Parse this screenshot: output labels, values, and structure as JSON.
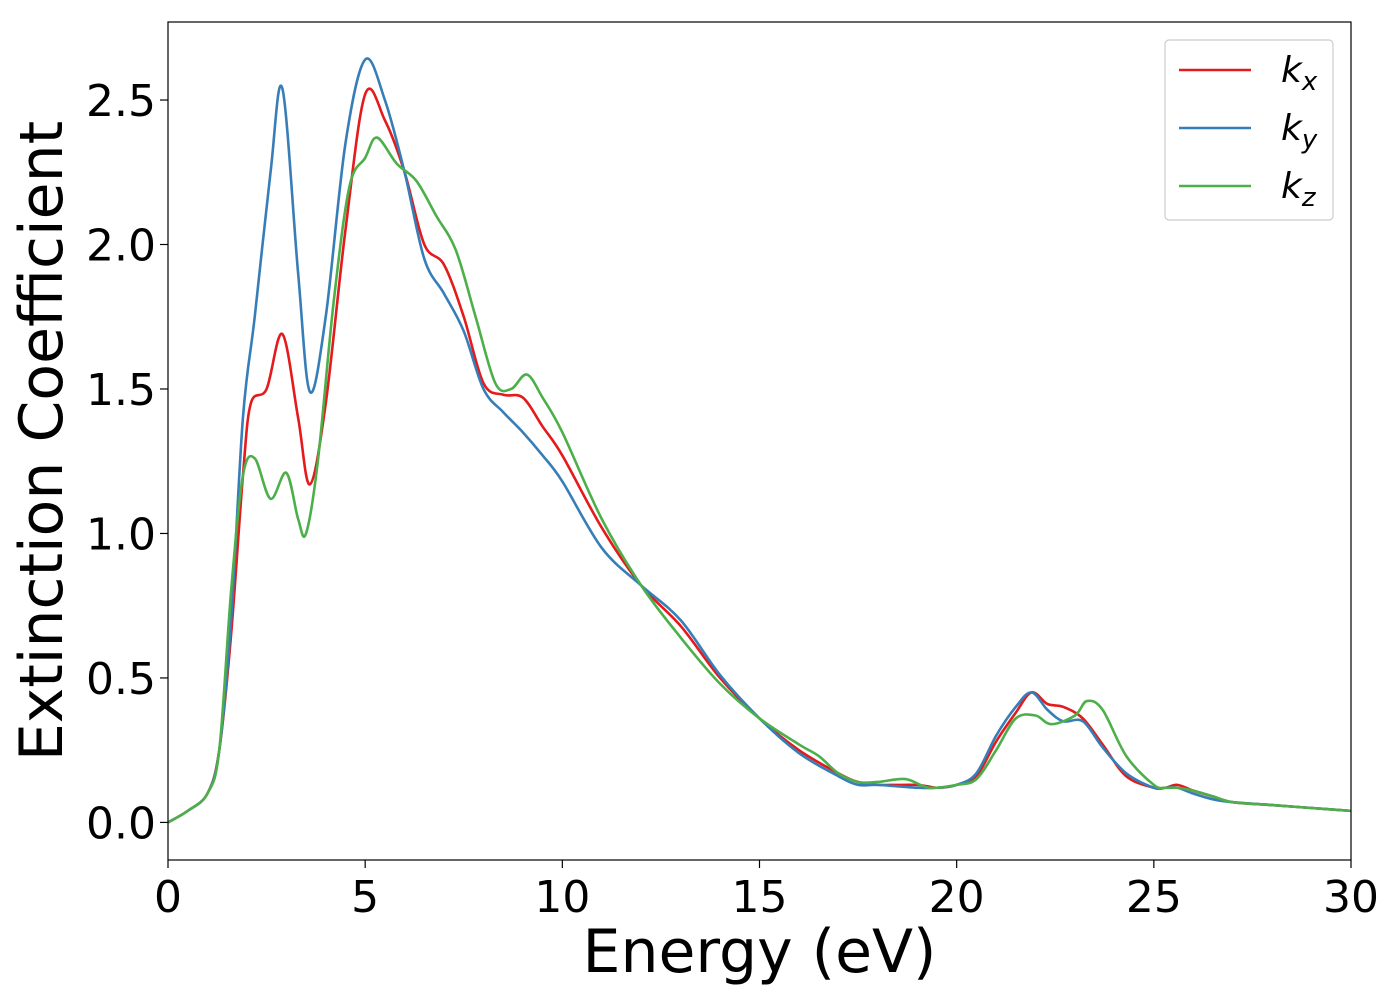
{
  "chart_data": {
    "type": "line",
    "xlabel": "Energy (eV)",
    "ylabel": "Extinction Coefficient",
    "xlim": [
      0,
      30
    ],
    "ylim": [
      -0.13,
      2.77
    ],
    "xticks": [
      0,
      5,
      10,
      15,
      20,
      25,
      30
    ],
    "xtick_labels": [
      "0",
      "5",
      "10",
      "15",
      "20",
      "25",
      "30"
    ],
    "yticks": [
      0.0,
      0.5,
      1.0,
      1.5,
      2.0,
      2.5
    ],
    "ytick_labels": [
      "0.0",
      "0.5",
      "1.0",
      "1.5",
      "2.0",
      "2.5"
    ],
    "grid": false,
    "legend_position": "top-right",
    "series": [
      {
        "name": "kx",
        "legend_base": "k",
        "legend_sub": "x",
        "color": "#e41a1c",
        "x": [
          0,
          0.5,
          1.0,
          1.3,
          1.6,
          1.9,
          2.1,
          2.5,
          2.9,
          3.3,
          3.6,
          4.0,
          4.5,
          5.0,
          5.5,
          6.0,
          6.5,
          7.0,
          7.5,
          8.0,
          8.5,
          9.0,
          9.5,
          10.0,
          11.0,
          12.0,
          13.0,
          14.0,
          15.0,
          16.0,
          17.0,
          17.5,
          18.0,
          19.0,
          19.5,
          20.0,
          20.5,
          21.0,
          21.5,
          21.9,
          22.3,
          22.7,
          23.2,
          23.7,
          24.3,
          25.0,
          25.3,
          25.6,
          26.0,
          26.5,
          27.0,
          28.0,
          29.0,
          30.0
        ],
        "y": [
          0.0,
          0.04,
          0.1,
          0.25,
          0.65,
          1.2,
          1.45,
          1.5,
          1.69,
          1.4,
          1.17,
          1.45,
          2.05,
          2.52,
          2.43,
          2.25,
          2.0,
          1.93,
          1.75,
          1.52,
          1.48,
          1.47,
          1.37,
          1.27,
          1.02,
          0.82,
          0.68,
          0.5,
          0.36,
          0.25,
          0.17,
          0.14,
          0.13,
          0.13,
          0.12,
          0.13,
          0.16,
          0.28,
          0.38,
          0.45,
          0.41,
          0.4,
          0.36,
          0.27,
          0.16,
          0.12,
          0.12,
          0.13,
          0.11,
          0.09,
          0.07,
          0.06,
          0.05,
          0.04
        ]
      },
      {
        "name": "ky",
        "legend_base": "k",
        "legend_sub": "y",
        "color": "#377eb8",
        "x": [
          0,
          0.5,
          1.0,
          1.3,
          1.6,
          1.9,
          2.2,
          2.6,
          2.9,
          3.3,
          3.6,
          4.0,
          4.5,
          5.0,
          5.5,
          6.0,
          6.5,
          7.0,
          7.5,
          8.0,
          8.5,
          9.0,
          9.5,
          10.0,
          11.0,
          12.0,
          13.0,
          14.0,
          15.0,
          16.0,
          17.0,
          17.5,
          18.0,
          19.0,
          19.5,
          20.0,
          20.5,
          21.0,
          21.5,
          21.9,
          22.3,
          22.7,
          23.2,
          23.7,
          24.3,
          25.0,
          25.3,
          25.6,
          26.0,
          26.5,
          27.0,
          28.0,
          29.0,
          30.0
        ],
        "y": [
          0.0,
          0.04,
          0.1,
          0.25,
          0.7,
          1.4,
          1.75,
          2.25,
          2.54,
          1.9,
          1.49,
          1.75,
          2.35,
          2.64,
          2.5,
          2.25,
          1.95,
          1.83,
          1.7,
          1.5,
          1.42,
          1.35,
          1.27,
          1.18,
          0.95,
          0.82,
          0.7,
          0.51,
          0.36,
          0.24,
          0.16,
          0.13,
          0.13,
          0.12,
          0.12,
          0.13,
          0.17,
          0.3,
          0.4,
          0.45,
          0.39,
          0.35,
          0.35,
          0.26,
          0.17,
          0.12,
          0.12,
          0.12,
          0.1,
          0.08,
          0.07,
          0.06,
          0.05,
          0.04
        ]
      },
      {
        "name": "kz",
        "legend_base": "k",
        "legend_sub": "z",
        "color": "#4daf4a",
        "x": [
          0,
          0.5,
          1.0,
          1.3,
          1.6,
          1.9,
          2.2,
          2.6,
          3.0,
          3.3,
          3.5,
          3.8,
          4.2,
          4.6,
          5.0,
          5.3,
          5.8,
          6.3,
          6.8,
          7.3,
          7.8,
          8.3,
          8.7,
          9.1,
          9.5,
          10.0,
          11.0,
          12.0,
          13.0,
          14.0,
          15.0,
          16.0,
          16.5,
          17.0,
          17.5,
          18.0,
          18.7,
          19.3,
          20.0,
          20.5,
          21.0,
          21.5,
          22.0,
          22.4,
          23.0,
          23.3,
          23.7,
          24.3,
          25.0,
          25.3,
          25.6,
          26.0,
          26.5,
          27.0,
          28.0,
          29.0,
          30.0
        ],
        "y": [
          0.0,
          0.04,
          0.1,
          0.25,
          0.8,
          1.2,
          1.26,
          1.12,
          1.21,
          1.05,
          1.0,
          1.25,
          1.8,
          2.2,
          2.3,
          2.37,
          2.28,
          2.22,
          2.1,
          1.98,
          1.75,
          1.52,
          1.5,
          1.55,
          1.47,
          1.35,
          1.05,
          0.82,
          0.64,
          0.48,
          0.36,
          0.27,
          0.23,
          0.17,
          0.14,
          0.14,
          0.15,
          0.12,
          0.13,
          0.15,
          0.25,
          0.36,
          0.37,
          0.34,
          0.37,
          0.42,
          0.39,
          0.23,
          0.13,
          0.12,
          0.12,
          0.11,
          0.09,
          0.07,
          0.06,
          0.05,
          0.04
        ]
      }
    ]
  }
}
